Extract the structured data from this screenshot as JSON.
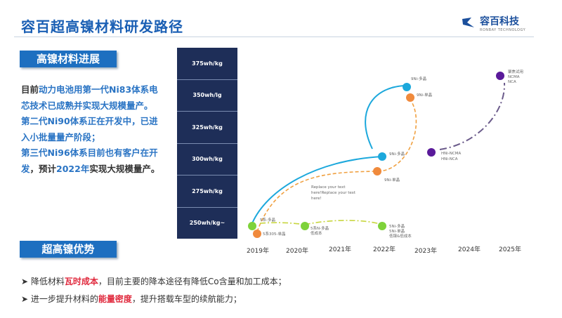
{
  "title": "容百超高镍材料研发路径",
  "logo": {
    "name": "容百科技",
    "sub": "RONBAY TECHNOLOGY"
  },
  "section1": "高镍材料进展",
  "section2": "超高镍优势",
  "para": {
    "p1a": "目前",
    "p1b": "动力电池用第一代Ni83体系电芯技术已成熟并实现大规模量产。",
    "p2": "第二代Ni90体系正在开发中，已进入小批量量产阶段；",
    "p3a": "第三代Ni96体系目前也有客户在开发",
    "p3b": "，预计",
    "p3c": "2022年",
    "p3d": "实现大规模量产。"
  },
  "energy_levels": [
    "375wh/kg",
    "350wh/lg",
    "325wh/kg",
    "300wh/kg",
    "275wh/kg",
    "250wh/kg~"
  ],
  "years": [
    "2019年",
    "2020年",
    "2021年",
    "2022年",
    "2023年",
    "2024年",
    "2025年"
  ],
  "nodes": {
    "g2019": "5系-多晶",
    "o2019": "5系305-单晶",
    "g2020": [
      "5系N-多晶",
      "低成本"
    ],
    "g2022": [
      "5Ni-多晶",
      "5Ni-单晶",
      "低镍&低成本"
    ],
    "b2022": "9Ni-多晶",
    "o2022": "9Ni-单晶",
    "btop": "9Ni-多晶",
    "otop": "9Ni-单晶",
    "pmid": [
      "HNi-NCMA",
      "HNi-NCA"
    ],
    "ptop": [
      "聚焦试用",
      "NCMA",
      "NCA"
    ],
    "note": [
      "Replace your text",
      "here!Replace your text",
      "here!"
    ]
  },
  "colors": {
    "green": "#7ed23a",
    "orange": "#f08a3c",
    "blue": "#1ca8dc",
    "purple": "#5a1a9a",
    "accent": "#1d6fc0",
    "red": "#e0283c"
  },
  "bullets": [
    {
      "a": "降低材料",
      "b": "瓦时成本",
      "c": "，目前主要的降本途径有降低Co含量和加工成本；"
    },
    {
      "a": "进一步提升材料的",
      "b": "能量密度",
      "c": "，提升搭载车型的续航能力；"
    }
  ]
}
